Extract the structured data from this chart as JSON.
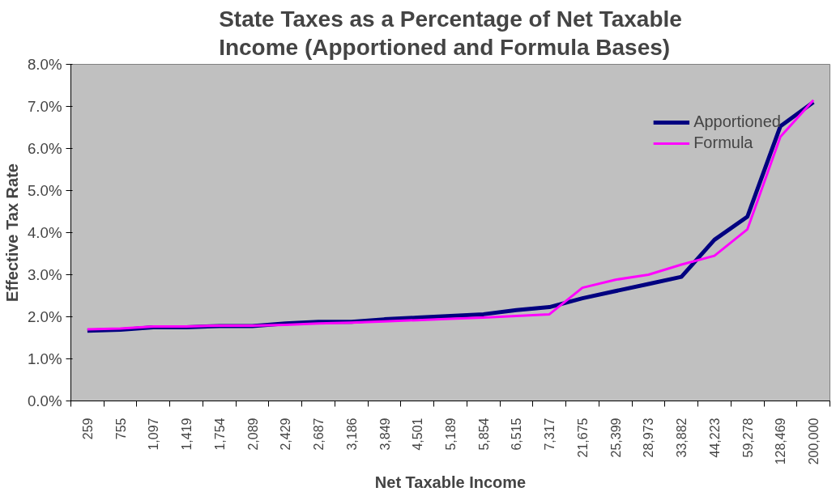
{
  "chart_data": {
    "type": "line",
    "title": "State Taxes as a Percentage of Net Taxable Income (Apportioned and Formula Bases)",
    "xlabel": "Net Taxable Income",
    "ylabel": "Effective Tax Rate",
    "categories": [
      "259",
      "755",
      "1,097",
      "1,419",
      "1,754",
      "2,089",
      "2,429",
      "2,687",
      "3,186",
      "3,849",
      "4,501",
      "5,189",
      "5,854",
      "6,515",
      "7,317",
      "21,675",
      "25,399",
      "28,973",
      "33,882",
      "44,223",
      "59,278",
      "128,469",
      "200,000"
    ],
    "series": [
      {
        "name": "Apportioned",
        "color": "#000080",
        "values": [
          1.67,
          1.69,
          1.75,
          1.75,
          1.78,
          1.78,
          1.84,
          1.88,
          1.88,
          1.94,
          1.98,
          2.02,
          2.06,
          2.16,
          2.23,
          2.44,
          2.61,
          2.78,
          2.95,
          3.83,
          4.38,
          6.53,
          7.1
        ]
      },
      {
        "name": "Formula",
        "color": "#ff00ff",
        "values": [
          1.7,
          1.72,
          1.77,
          1.77,
          1.79,
          1.79,
          1.81,
          1.84,
          1.86,
          1.89,
          1.92,
          1.95,
          1.98,
          2.02,
          2.06,
          2.69,
          2.88,
          3.0,
          3.24,
          3.45,
          4.08,
          6.28,
          7.15
        ]
      }
    ],
    "ylim": [
      0,
      8
    ],
    "yticks": [
      {
        "value": 0,
        "label": "0.0%"
      },
      {
        "value": 1,
        "label": "1.0%"
      },
      {
        "value": 2,
        "label": "2.0%"
      },
      {
        "value": 3,
        "label": "3.0%"
      },
      {
        "value": 4,
        "label": "4.0%"
      },
      {
        "value": 5,
        "label": "5.0%"
      },
      {
        "value": 6,
        "label": "6.0%"
      },
      {
        "value": 7,
        "label": "7.0%"
      },
      {
        "value": 8,
        "label": "8.0%"
      }
    ],
    "grid": false,
    "legend": "top right",
    "marker": "none",
    "line_style": "solid"
  }
}
